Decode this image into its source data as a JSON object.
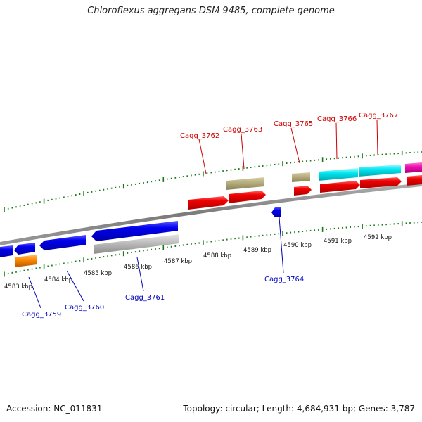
{
  "title": "Chloroflexus aggregans DSM 9485, complete genome",
  "footer": {
    "accession": "Accession: NC_011831",
    "summary": "Topology: circular; Length: 4,684,931 bp; Genes: 3,787"
  },
  "scale": {
    "ticks": [
      "4583 kbp",
      "4584 kbp",
      "4585 kbp",
      "4586 kbp",
      "4587 kbp",
      "4588 kbp",
      "4589 kbp",
      "4590 kbp",
      "4591 kbp",
      "4592 kbp"
    ]
  },
  "genes": {
    "forward_labels": [
      "Cagg_3762",
      "Cagg_3763",
      "Cagg_3765",
      "Cagg_3766",
      "Cagg_3767"
    ],
    "reverse_labels": [
      "Cagg_3759",
      "Cagg_3760",
      "Cagg_3761",
      "Cagg_3764"
    ]
  },
  "colors": {
    "forward_label": "#cc0000",
    "reverse_label": "#0000bb",
    "tick": "#1a7a1a",
    "backbone": "#808080",
    "red": "#ee0000",
    "blue": "#0000ee",
    "olive": "#b8b080",
    "cyan": "#00e6f0",
    "magenta": "#ee10b0",
    "gray": "#c0c0c0",
    "orange": "#ff8800"
  }
}
